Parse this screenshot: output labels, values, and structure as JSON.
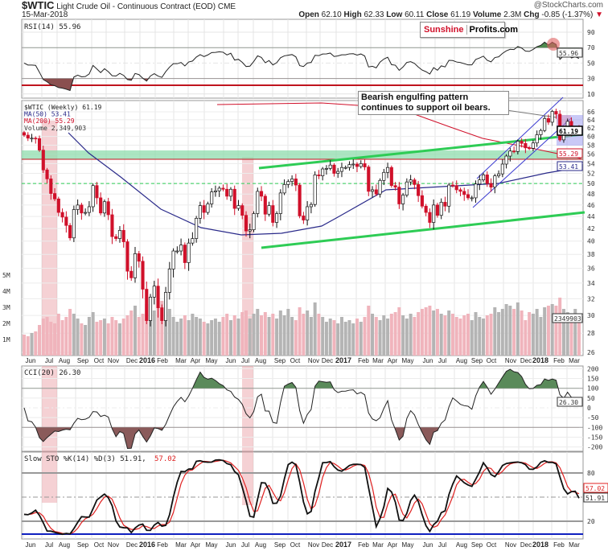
{
  "header": {
    "symbol": "$WTIC",
    "name": "Light Crude Oil - Continuous Contract (EOD)",
    "exchange": "CME",
    "date": "15-Mar-2018",
    "credit": "@StockCharts.com",
    "open_label": "Open",
    "open": "62.10",
    "high_label": "High",
    "high": "62.33",
    "low_label": "Low",
    "low": "60.11",
    "close_label": "Close",
    "close": "61.19",
    "volume_label": "Volume",
    "volume": "2.3M",
    "chg_label": "Chg",
    "chg": "-0.85 (-1.37%)",
    "chg_arrow": "▼"
  },
  "logo": {
    "part1": "Sunshine",
    "part2": "Profits.com"
  },
  "annotation": "Bearish engulfing pattern continues to support oil bears.",
  "colors": {
    "up": "#ffffff",
    "down": "#d0102a",
    "ma50": "#2a2a8a",
    "ma200": "#d0102a",
    "zone": "#8fdcae",
    "trend": "#2ecc55",
    "channel": "#3a3ad0"
  },
  "chart_data": {
    "type": "candlestick",
    "title": "$WTIC Light Crude Oil - Continuous Contract (EOD) Weekly",
    "closes": [
      60.3,
      59.6,
      59.6,
      59.5,
      56.9,
      52.7,
      50.9,
      48.1,
      47.1,
      44.7,
      43.9,
      42.5,
      40.5,
      45.2,
      46.0,
      44.6,
      44.7,
      45.7,
      49.6,
      47.3,
      44.6,
      46.6,
      44.3,
      40.7,
      40.4,
      41.7,
      39.9,
      35.6,
      34.7,
      38.1,
      37.0,
      33.2,
      29.4,
      32.2,
      33.6,
      30.9,
      29.4,
      32.8,
      35.9,
      38.5,
      38.5,
      39.4,
      36.8,
      39.7,
      40.4,
      43.7,
      45.9,
      44.7,
      46.2,
      48.4,
      48.6,
      49.1,
      48.9,
      47.6,
      48.9,
      45.4,
      45.9,
      44.2,
      41.6,
      41.8,
      44.5,
      48.5,
      47.6,
      44.4,
      45.9,
      43.0,
      44.5,
      48.2,
      49.8,
      50.4,
      50.9,
      49.7,
      44.1,
      43.4,
      45.7,
      46.1,
      51.7,
      51.5,
      52.9,
      53.0,
      53.7,
      52.0,
      52.4,
      53.2,
      53.2,
      53.8,
      53.9,
      53.4,
      54.0,
      53.3,
      48.5,
      48.8,
      48.0,
      50.6,
      52.2,
      53.2,
      49.6,
      49.3,
      46.2,
      47.8,
      50.3,
      50.7,
      49.8,
      47.7,
      45.8,
      44.7,
      43.0,
      46.0,
      44.2,
      46.5,
      45.8,
      49.7,
      49.6,
      48.8,
      48.5,
      47.9,
      47.3,
      47.3,
      49.9,
      50.7,
      51.7,
      50.0,
      49.3,
      51.5,
      51.9,
      53.9,
      55.6,
      56.7,
      56.6,
      58.9,
      58.4,
      57.4,
      57.3,
      58.5,
      60.4,
      61.4,
      64.3,
      63.4,
      66.1,
      65.4,
      59.2,
      61.7,
      63.6,
      61.2,
      62.0,
      61.19
    ],
    "volume_millions": [
      1.3,
      1.2,
      1.4,
      1.5,
      1.9,
      2.3,
      2.4,
      2.1,
      2.0,
      2.6,
      2.2,
      2.4,
      2.9,
      2.6,
      2.3,
      2.0,
      1.9,
      2.4,
      2.7,
      2.1,
      2.2,
      2.3,
      2.0,
      2.4,
      2.2,
      2.0,
      2.3,
      2.5,
      2.8,
      3.1,
      2.4,
      2.6,
      3.2,
      2.9,
      2.8,
      3.0,
      3.4,
      2.7,
      2.9,
      2.4,
      2.1,
      2.3,
      2.5,
      2.2,
      2.6,
      2.4,
      2.3,
      2.1,
      2.0,
      2.2,
      2.3,
      2.1,
      2.4,
      2.6,
      2.2,
      2.5,
      2.3,
      2.7,
      2.8,
      2.3,
      2.6,
      2.9,
      2.5,
      2.7,
      2.4,
      2.6,
      2.3,
      2.8,
      2.5,
      2.9,
      2.4,
      2.2,
      3.0,
      2.6,
      2.8,
      2.4,
      3.3,
      2.6,
      2.4,
      2.1,
      2.3,
      2.2,
      2.0,
      2.4,
      2.1,
      2.2,
      2.0,
      2.3,
      2.1,
      2.4,
      3.1,
      2.6,
      2.4,
      2.2,
      2.5,
      2.3,
      2.6,
      2.7,
      3.0,
      2.5,
      2.3,
      2.6,
      2.4,
      2.7,
      2.9,
      3.0,
      3.1,
      2.8,
      2.9,
      2.6,
      2.5,
      2.8,
      2.6,
      2.4,
      2.3,
      2.5,
      2.6,
      2.2,
      2.7,
      2.4,
      2.3,
      2.5,
      2.6,
      3.0,
      2.7,
      2.9,
      3.2,
      3.1,
      2.9,
      3.3,
      2.8,
      2.2,
      2.7,
      2.6,
      2.9,
      2.4,
      3.0,
      3.1,
      3.2,
      3.1,
      3.6,
      2.9,
      2.7,
      2.5,
      2.9,
      2.3
    ],
    "x_labels": [
      "Jun",
      "Jul",
      "Aug",
      "Sep",
      "Oct",
      "Nov",
      "Dec",
      "2016",
      "Feb",
      "Mar",
      "Apr",
      "May",
      "Jun",
      "Jul",
      "Aug",
      "Sep",
      "Oct",
      "Nov",
      "Dec",
      "2017",
      "Feb",
      "Mar",
      "Apr",
      "May",
      "Jun",
      "Jul",
      "Aug",
      "Sep",
      "Oct",
      "Nov",
      "Dec",
      "2018",
      "Feb",
      "Mar"
    ],
    "rsi": {
      "label": "RSI(14) 55.96",
      "ticks": [
        "90",
        "70",
        "50",
        "30",
        "10"
      ],
      "last": "55.96",
      "overbought": 70,
      "oversold": 30
    },
    "price": {
      "scale": "log",
      "ylim": [
        26,
        66
      ],
      "legend": [
        "$WTIC (Weekly) 61.19",
        "MA(50) 53.41",
        "MA(200) 55.29",
        "Volume 2,349,903"
      ],
      "ticks": [
        "66",
        "64",
        "62",
        "60",
        "58",
        "56",
        "54",
        "52",
        "50",
        "48",
        "46",
        "44",
        "42",
        "40",
        "38",
        "36",
        "34",
        "32",
        "30",
        "28",
        "26"
      ],
      "last": "61.19",
      "ma200_last": "55.29",
      "ma50_last": "53.41",
      "volume_last": "2349903",
      "support_line": 50
    },
    "volume": {
      "ticks": [
        "5M",
        "4M",
        "3M",
        "2M",
        "1M"
      ]
    },
    "cci": {
      "label": "CCI(20) 26.30",
      "ticks": [
        "200",
        "150",
        "100",
        "50",
        "0",
        "-50",
        "-100",
        "-150",
        "-200"
      ],
      "last": "26.30"
    },
    "sto": {
      "label_prefix": "Slow STO %K(14) %D(3) 51.91,",
      "label_d": "57.02",
      "ticks": [
        "80",
        "20"
      ],
      "last_k": "51.91",
      "last_d": "57.02"
    }
  }
}
